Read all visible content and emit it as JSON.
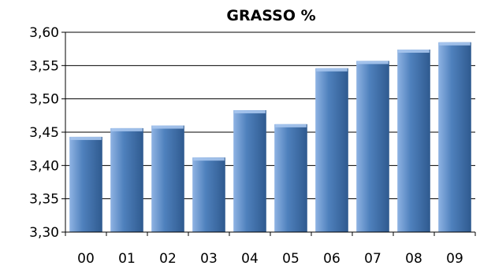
{
  "chart_data": {
    "type": "bar",
    "title": "GRASSO %",
    "xlabel": "",
    "ylabel": "",
    "categories": [
      "00",
      "01",
      "02",
      "03",
      "04",
      "05",
      "06",
      "07",
      "08",
      "09"
    ],
    "values": [
      3.443,
      3.456,
      3.46,
      3.412,
      3.483,
      3.462,
      3.546,
      3.557,
      3.574,
      3.585
    ],
    "ylim": [
      3.3,
      3.6
    ],
    "yticks": [
      "3,30",
      "3,35",
      "3,40",
      "3,45",
      "3,50",
      "3,55",
      "3,60"
    ],
    "grid": true,
    "legend": "none",
    "colors": {
      "bar_light": "#8fb3e3",
      "bar_mid": "#4f81bd",
      "bar_dark": "#2f5a8f",
      "bar_top": "#a9c6ee",
      "gridline": "#000000",
      "axis": "#000000"
    }
  }
}
